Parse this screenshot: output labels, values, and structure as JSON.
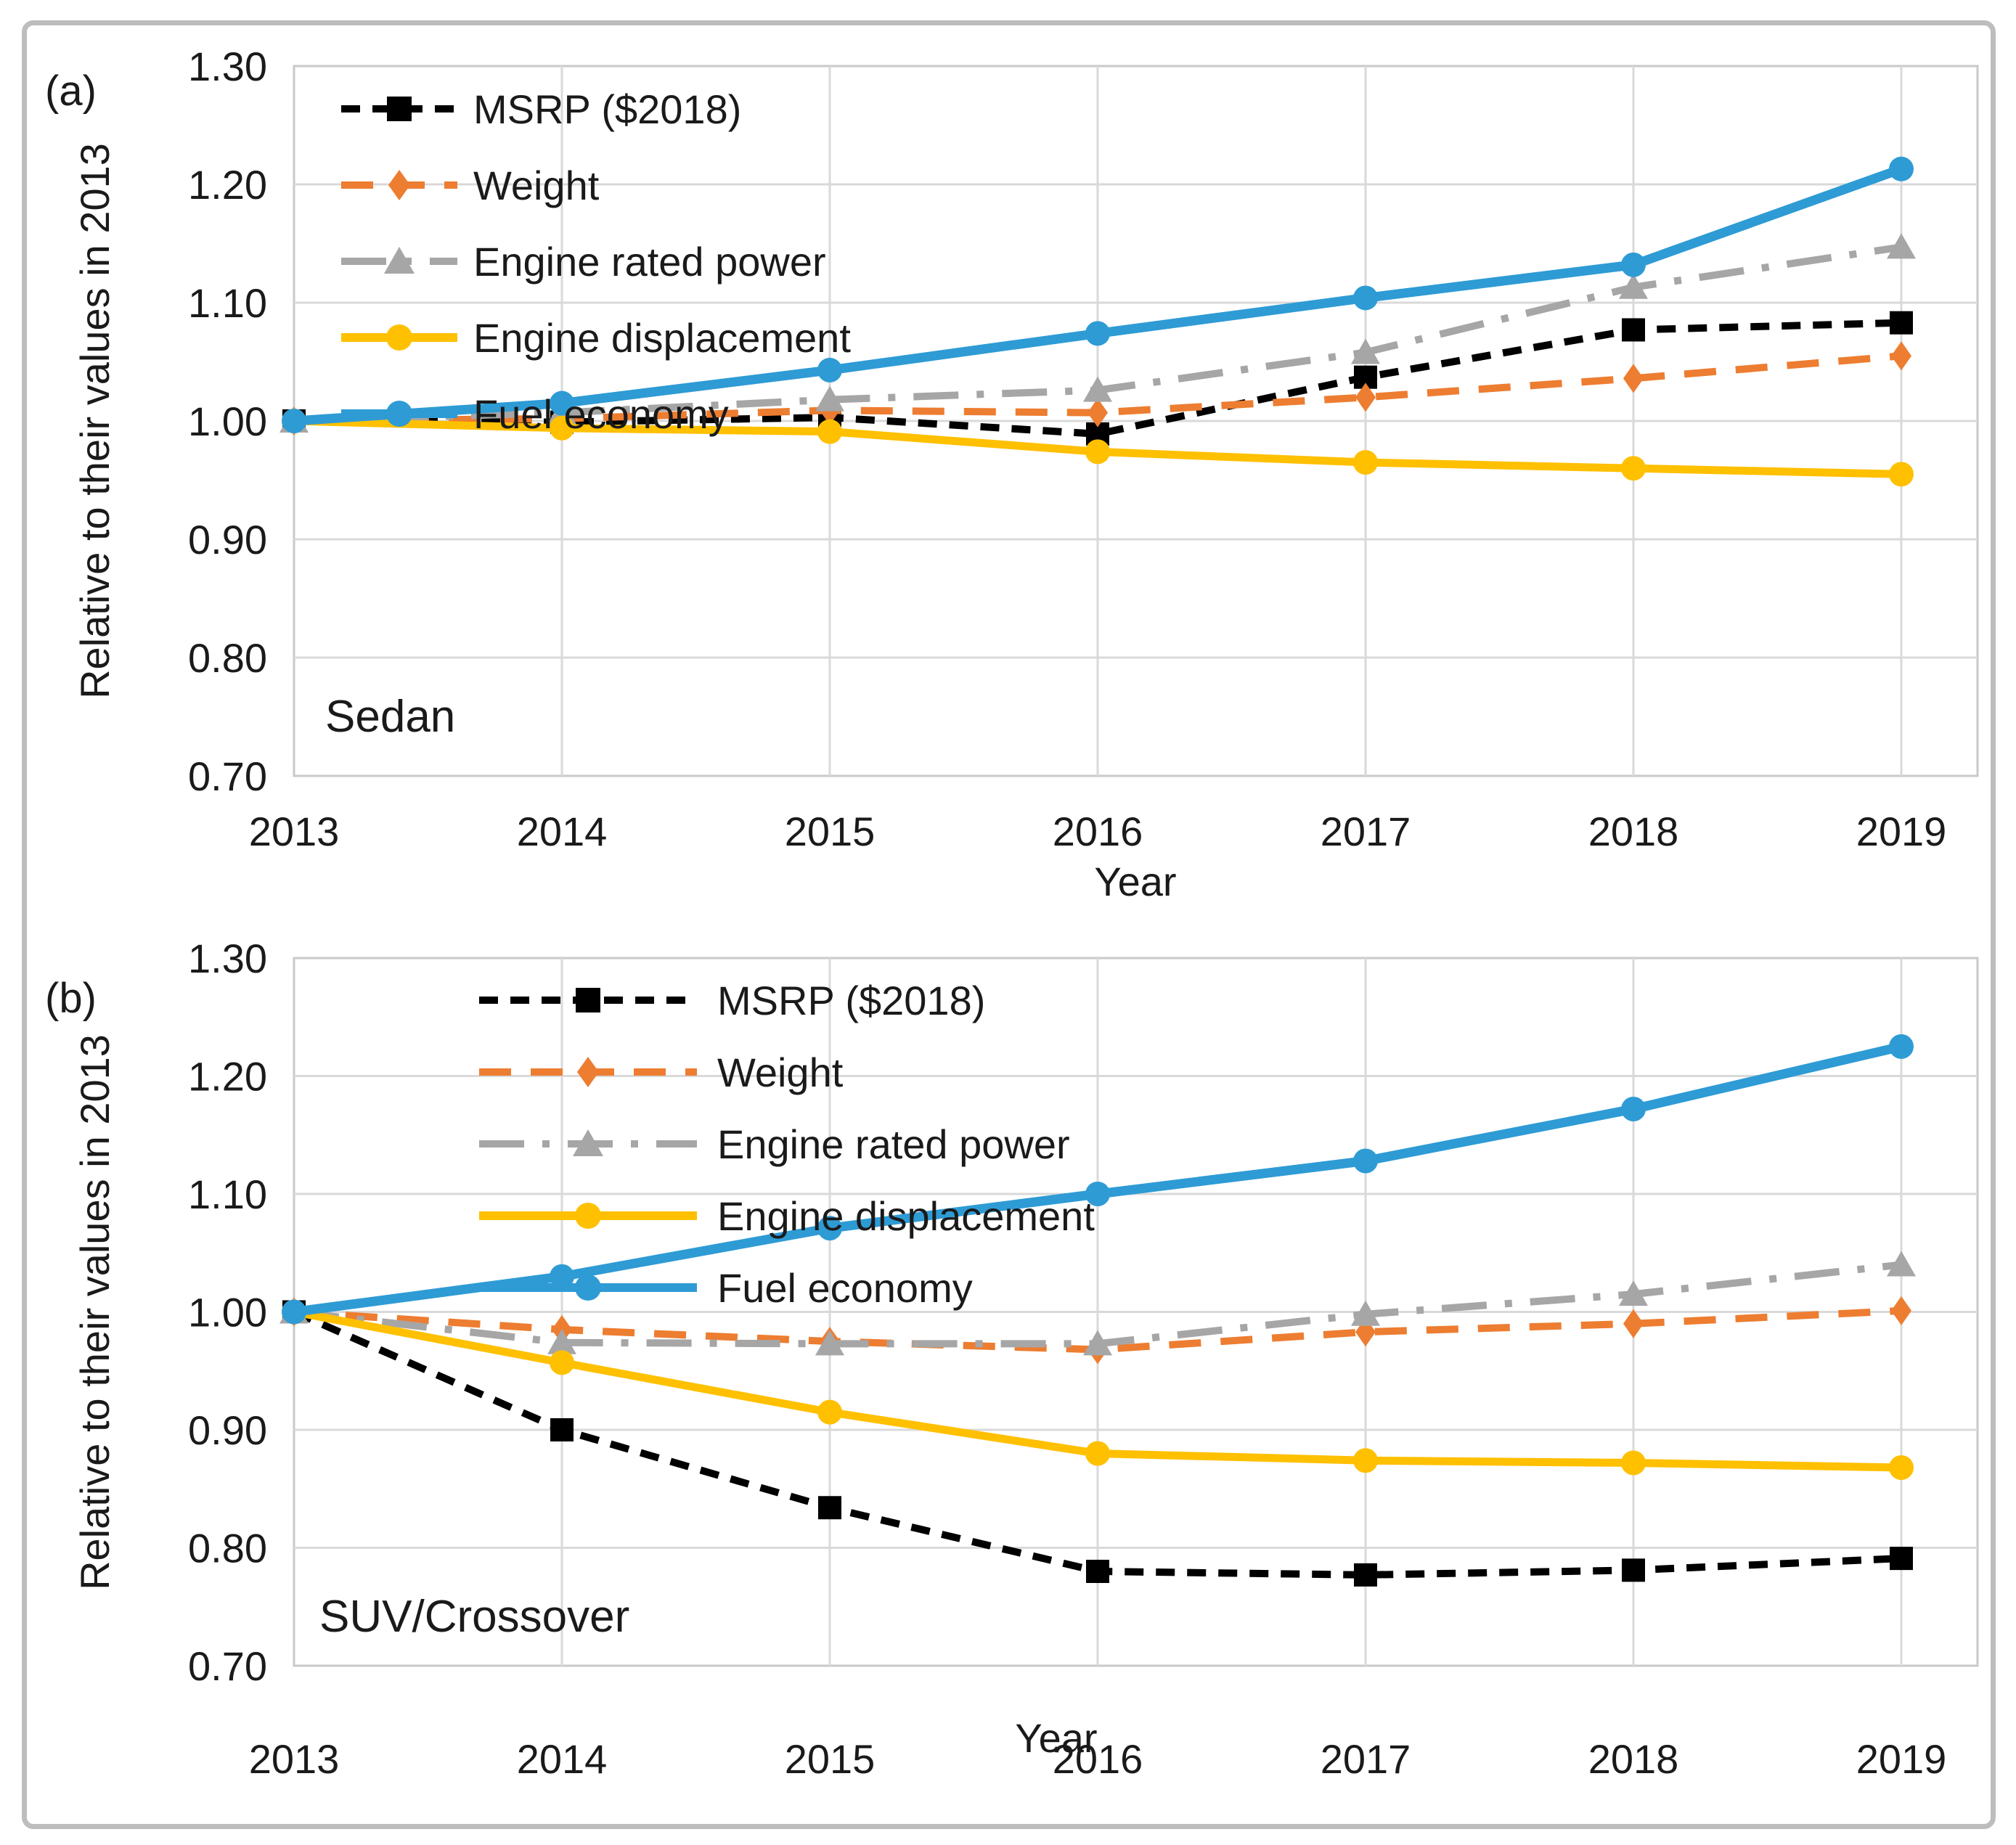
{
  "figure": {
    "background": "#FFFFFF",
    "border_color": "#BDBDBD",
    "gridline_color": "#D9D9D9",
    "plot_border_color": "#C9C9C9"
  },
  "chart_data": [
    {
      "type": "line",
      "panel_label": "(a)",
      "annotation": "Sedan",
      "xlabel": "Year",
      "ylabel": "Relative to their values in 2013",
      "x": [
        2013,
        2014,
        2015,
        2016,
        2017,
        2018,
        2019
      ],
      "x_tick_labels": [
        "2013",
        "2014",
        "2015",
        "2016",
        "2017",
        "2018",
        "2019"
      ],
      "ylim": [
        0.7,
        1.3
      ],
      "y_tick_step": 0.1,
      "y_tick_labels": [
        "1.30",
        "1.20",
        "1.10",
        "1.00",
        "0.90",
        "0.80",
        "0.70"
      ],
      "grid": true,
      "legend_position": "top-left-inside",
      "series": [
        {
          "name": "MSRP ($2018)",
          "color": "#000000",
          "marker": "square",
          "line": "dash",
          "values": [
            1.0,
            0.999,
            1.003,
            0.989,
            1.037,
            1.077,
            1.083
          ]
        },
        {
          "name": "Weight",
          "color": "#ED7D31",
          "marker": "diamond",
          "line": "longdash",
          "values": [
            1.0,
            1.002,
            1.009,
            1.007,
            1.02,
            1.036,
            1.055
          ]
        },
        {
          "name": "Engine rated power",
          "color": "#A6A6A6",
          "marker": "triangle",
          "line": "dashdot",
          "values": [
            1.0,
            1.007,
            1.018,
            1.026,
            1.058,
            1.113,
            1.147
          ]
        },
        {
          "name": "Engine displacement",
          "color": "#FFC000",
          "marker": "circle",
          "line": "solid",
          "values": [
            1.0,
            0.994,
            0.991,
            0.974,
            0.965,
            0.96,
            0.955
          ]
        },
        {
          "name": "Fuel economy",
          "color": "#2E9BD5",
          "marker": "circle",
          "line": "solid",
          "values": [
            1.0,
            1.015,
            1.043,
            1.074,
            1.104,
            1.132,
            1.213
          ]
        }
      ]
    },
    {
      "type": "line",
      "panel_label": "(b)",
      "annotation": "SUV/Crossover",
      "xlabel": "Year",
      "ylabel": "Relative to their values in 2013",
      "x": [
        2013,
        2014,
        2015,
        2016,
        2017,
        2018,
        2019
      ],
      "x_tick_labels": [
        "2013",
        "2014",
        "2015",
        "2016",
        "2017",
        "2018",
        "2019"
      ],
      "ylim": [
        0.7,
        1.3
      ],
      "y_tick_step": 0.1,
      "y_tick_labels": [
        "1.30",
        "1.20",
        "1.10",
        "1.00",
        "0.90",
        "0.80",
        "0.70"
      ],
      "grid": true,
      "legend_position": "top-left-inside",
      "series": [
        {
          "name": "MSRP ($2018)",
          "color": "#000000",
          "marker": "square",
          "line": "dash",
          "values": [
            1.0,
            0.9,
            0.834,
            0.78,
            0.777,
            0.781,
            0.791
          ]
        },
        {
          "name": "Weight",
          "color": "#ED7D31",
          "marker": "diamond",
          "line": "longdash",
          "values": [
            1.0,
            0.985,
            0.975,
            0.968,
            0.983,
            0.99,
            1.001
          ]
        },
        {
          "name": "Engine rated power",
          "color": "#A6A6A6",
          "marker": "triangle",
          "line": "dashdot",
          "values": [
            1.0,
            0.974,
            0.973,
            0.973,
            0.998,
            1.015,
            1.04
          ]
        },
        {
          "name": "Engine displacement",
          "color": "#FFC000",
          "marker": "circle",
          "line": "solid",
          "values": [
            1.0,
            0.957,
            0.915,
            0.88,
            0.874,
            0.872,
            0.868
          ]
        },
        {
          "name": "Fuel economy",
          "color": "#2E9BD5",
          "marker": "circle",
          "line": "solid",
          "values": [
            1.0,
            1.03,
            1.071,
            1.1,
            1.128,
            1.172,
            1.225
          ]
        }
      ]
    }
  ]
}
